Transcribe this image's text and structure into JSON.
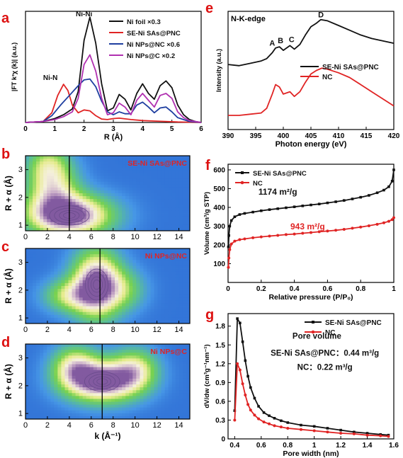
{
  "colors": {
    "black": "#111111",
    "red": "#e02424",
    "blue": "#1f3fa0",
    "purple": "#b030b0",
    "ni_n": "#d42020"
  },
  "chart_data": [
    {
      "id": "a",
      "type": "line",
      "panel_label": "a",
      "xlabel": "R (Å)",
      "ylabel": "|FT k³χ (k)| (a.u.)",
      "xlim": [
        0,
        6
      ],
      "ylim": [
        0,
        11.5
      ],
      "xticks": [
        0,
        1,
        2,
        3,
        4,
        5,
        6
      ],
      "annotations": [
        {
          "text": "Ni-Ni",
          "x": 2.0,
          "y": 11.0
        },
        {
          "text": "Ni-N",
          "x": 0.85,
          "y": 4.4
        }
      ],
      "legend": "top-right",
      "series": [
        {
          "name": "Ni foil ×0.3",
          "color": "#111111",
          "x": [
            0,
            0.6,
            1.0,
            1.3,
            1.6,
            1.8,
            2.0,
            2.2,
            2.4,
            2.6,
            2.8,
            3.0,
            3.2,
            3.4,
            3.6,
            3.8,
            4.0,
            4.2,
            4.4,
            4.6,
            4.8,
            5.0,
            5.2,
            5.4,
            5.6,
            5.8,
            6.0
          ],
          "y": [
            0,
            0.1,
            0.4,
            0.8,
            1.4,
            3.2,
            8.5,
            10.9,
            8.2,
            4.0,
            1.2,
            1.5,
            2.9,
            2.4,
            1.3,
            3.0,
            4.0,
            3.0,
            2.4,
            3.8,
            4.3,
            3.6,
            1.8,
            0.8,
            0.3,
            0.1,
            0
          ]
        },
        {
          "name": "SE-Ni SAs@PNC",
          "color": "#e02424",
          "x": [
            0,
            0.6,
            0.9,
            1.1,
            1.3,
            1.45,
            1.6,
            1.8,
            2.0,
            2.2,
            2.4,
            2.6,
            2.8,
            3.0,
            3.2,
            3.6,
            4.0,
            4.4,
            4.8,
            5.2,
            5.6,
            6.0
          ],
          "y": [
            0,
            0.1,
            1.0,
            2.8,
            3.95,
            3.3,
            1.8,
            1.0,
            1.3,
            1.2,
            0.7,
            0.35,
            0.3,
            0.4,
            0.45,
            0.3,
            0.2,
            0.15,
            0.1,
            0.05,
            0.03,
            0
          ]
        },
        {
          "name": "Ni NPs@NC ×0.6",
          "color": "#1f3fa0",
          "x": [
            0,
            0.6,
            0.9,
            1.2,
            1.5,
            1.8,
            2.0,
            2.2,
            2.4,
            2.6,
            2.8,
            3.0,
            3.2,
            3.4,
            3.6,
            3.8,
            4.0,
            4.2,
            4.4,
            4.6,
            4.8,
            5.0,
            5.2,
            5.6,
            6.0
          ],
          "y": [
            0,
            0.1,
            0.7,
            1.8,
            2.8,
            3.8,
            4.4,
            4.5,
            3.7,
            2.2,
            1.1,
            0.8,
            1.1,
            0.9,
            0.9,
            1.8,
            2.1,
            1.6,
            1.0,
            1.5,
            1.6,
            1.1,
            0.5,
            0.1,
            0
          ]
        },
        {
          "name": "Ni NPs@C ×0.2",
          "color": "#b030b0",
          "x": [
            0,
            0.6,
            1.0,
            1.3,
            1.6,
            1.8,
            2.0,
            2.2,
            2.4,
            2.6,
            2.8,
            3.0,
            3.2,
            3.4,
            3.6,
            3.8,
            4.0,
            4.2,
            4.4,
            4.6,
            4.8,
            5.0,
            5.2,
            5.4,
            5.6,
            6.0
          ],
          "y": [
            0,
            0.1,
            0.3,
            0.6,
            1.1,
            2.5,
            6.0,
            7.0,
            5.3,
            2.5,
            0.8,
            1.0,
            2.0,
            1.6,
            0.8,
            2.3,
            3.0,
            2.3,
            1.6,
            2.8,
            3.0,
            2.5,
            1.1,
            0.5,
            0.2,
            0
          ]
        }
      ]
    },
    {
      "id": "e",
      "type": "line",
      "panel_label": "e",
      "title": "N-K-edge",
      "xlabel": "Photon energy (eV)",
      "ylabel": "Intensity (a.u.)",
      "xlim": [
        390,
        420
      ],
      "ylim": [
        0,
        1
      ],
      "xticks": [
        390,
        395,
        400,
        405,
        410,
        415,
        420
      ],
      "annotations": [
        {
          "text": "A",
          "x": 398.0,
          "y": 0.71
        },
        {
          "text": "B",
          "x": 399.5,
          "y": 0.73
        },
        {
          "text": "C",
          "x": 401.5,
          "y": 0.74
        },
        {
          "text": "D",
          "x": 406.8,
          "y": 0.95
        }
      ],
      "legend": "center-right",
      "series": [
        {
          "name": "SE-Ni SAs@PNC",
          "color": "#111111",
          "x": [
            390,
            392,
            394,
            396,
            397,
            398,
            398.6,
            399.3,
            400,
            401.2,
            402,
            403,
            404,
            405,
            406,
            406.8,
            408,
            410,
            412,
            414,
            416,
            418,
            420
          ],
          "y": [
            0.55,
            0.54,
            0.56,
            0.58,
            0.6,
            0.65,
            0.69,
            0.7,
            0.67,
            0.71,
            0.68,
            0.72,
            0.8,
            0.87,
            0.9,
            0.93,
            0.92,
            0.88,
            0.84,
            0.8,
            0.77,
            0.75,
            0.73
          ]
        },
        {
          "name": "NC",
          "color": "#e02424",
          "x": [
            390,
            392,
            394,
            396,
            397,
            398,
            398.6,
            399.3,
            400,
            401.2,
            402,
            403,
            404,
            405,
            406,
            407,
            408,
            410,
            412,
            414,
            416,
            418,
            420
          ],
          "y": [
            0.12,
            0.12,
            0.13,
            0.14,
            0.18,
            0.3,
            0.38,
            0.36,
            0.3,
            0.32,
            0.28,
            0.32,
            0.4,
            0.47,
            0.5,
            0.52,
            0.51,
            0.48,
            0.44,
            0.38,
            0.32,
            0.26,
            0.2
          ]
        }
      ]
    },
    {
      "id": "b",
      "type": "heatmap",
      "panel_label": "b",
      "panel_name": "SE-Ni SAs@PNC",
      "xlim": [
        0,
        15
      ],
      "ylim": [
        0.8,
        3.5
      ],
      "xticks": [
        0,
        2,
        4,
        6,
        8,
        10,
        12,
        14
      ],
      "yticks": [
        1,
        2,
        3
      ],
      "ylabel": "R + α (Å)",
      "vline_k": 4.0,
      "peaks": [
        {
          "k": 4.0,
          "r": 1.35,
          "w": 2.6,
          "h": 0.5,
          "amp": 1.0
        },
        {
          "k": 2.5,
          "r": 2.3,
          "w": 1.6,
          "h": 0.7,
          "amp": 0.55
        },
        {
          "k": 2.0,
          "r": 3.2,
          "w": 1.3,
          "h": 0.5,
          "amp": 0.35
        }
      ]
    },
    {
      "id": "c",
      "type": "heatmap",
      "panel_label": "c",
      "panel_name": "Ni NPs@NC",
      "xlim": [
        0,
        15
      ],
      "ylim": [
        0.8,
        3.5
      ],
      "xticks": [
        0,
        2,
        4,
        6,
        8,
        10,
        12,
        14
      ],
      "yticks": [
        1,
        2,
        3
      ],
      "ylabel": "R + α (Å)",
      "vline_k": 6.8,
      "peaks": [
        {
          "k": 6.5,
          "r": 2.2,
          "w": 1.5,
          "h": 0.8,
          "amp": 1.0
        },
        {
          "k": 4.0,
          "r": 1.8,
          "w": 1.6,
          "h": 0.4,
          "amp": 0.45
        },
        {
          "k": 9.0,
          "r": 2.0,
          "w": 1.4,
          "h": 0.5,
          "amp": 0.3
        }
      ]
    },
    {
      "id": "d",
      "type": "heatmap",
      "panel_label": "d",
      "panel_name": "Ni NPs@C",
      "xlim": [
        0,
        15
      ],
      "ylim": [
        0.8,
        3.5
      ],
      "xticks": [
        0,
        2,
        4,
        6,
        8,
        10,
        12,
        14
      ],
      "yticks": [
        1,
        2,
        3
      ],
      "ylabel": "R + α (Å)",
      "xlabel": "k (Å⁻¹)",
      "vline_k": 7.0,
      "peaks": [
        {
          "k": 7.0,
          "r": 2.15,
          "w": 2.3,
          "h": 0.5,
          "amp": 1.0
        },
        {
          "k": 4.5,
          "r": 2.7,
          "w": 1.4,
          "h": 0.5,
          "amp": 0.55
        },
        {
          "k": 10.0,
          "r": 2.6,
          "w": 1.4,
          "h": 0.5,
          "amp": 0.5
        }
      ]
    },
    {
      "id": "f",
      "type": "line",
      "panel_label": "f",
      "xlabel": "Relative pressure (P/P₀)",
      "ylabel": "Volume (cm³/g STP)",
      "xlim": [
        0,
        1
      ],
      "ylim": [
        0,
        630
      ],
      "xticks": [
        0.0,
        0.2,
        0.4,
        0.6,
        0.8,
        1.0
      ],
      "yticks": [
        100,
        200,
        300,
        400,
        500,
        600
      ],
      "annotations": [
        {
          "text": "1174 m²/g",
          "x": 0.3,
          "y": 468,
          "color": "#111111"
        },
        {
          "text": "943 m²/g",
          "x": 0.48,
          "y": 283,
          "color": "#e02424"
        }
      ],
      "legend": "top-left",
      "series": [
        {
          "name": "SE-Ni SAs@PNC",
          "color": "#111111",
          "marker": "square",
          "x": [
            0.002,
            0.005,
            0.01,
            0.02,
            0.04,
            0.07,
            0.1,
            0.15,
            0.2,
            0.25,
            0.3,
            0.35,
            0.4,
            0.45,
            0.5,
            0.55,
            0.6,
            0.65,
            0.7,
            0.75,
            0.8,
            0.85,
            0.9,
            0.94,
            0.97,
            0.99,
            1.0
          ],
          "y": [
            190,
            250,
            300,
            330,
            350,
            362,
            368,
            375,
            382,
            388,
            393,
            398,
            403,
            408,
            413,
            418,
            424,
            430,
            437,
            445,
            454,
            464,
            478,
            492,
            510,
            540,
            600
          ]
        },
        {
          "name": "NC",
          "color": "#e02424",
          "marker": "circle",
          "x": [
            0.002,
            0.005,
            0.01,
            0.02,
            0.04,
            0.07,
            0.1,
            0.15,
            0.2,
            0.25,
            0.3,
            0.35,
            0.4,
            0.45,
            0.5,
            0.55,
            0.6,
            0.65,
            0.7,
            0.75,
            0.8,
            0.85,
            0.9,
            0.94,
            0.97,
            0.99,
            1.0
          ],
          "y": [
            80,
            130,
            175,
            205,
            220,
            228,
            232,
            238,
            243,
            247,
            251,
            255,
            258,
            262,
            266,
            270,
            274,
            278,
            283,
            289,
            295,
            302,
            310,
            318,
            326,
            335,
            345
          ]
        }
      ]
    },
    {
      "id": "g",
      "type": "line",
      "panel_label": "g",
      "xlabel": "Pore width (nm)",
      "ylabel": "dV/dw (cm³g⁻¹nm⁻¹)",
      "xlim": [
        0.35,
        1.6
      ],
      "ylim": [
        0,
        2.0
      ],
      "xticks": [
        0.4,
        0.6,
        0.8,
        1.0,
        1.2,
        1.4,
        1.6
      ],
      "yticks": [
        0.0,
        0.3,
        0.6,
        0.9,
        1.2,
        1.5,
        1.8
      ],
      "annotations": [
        {
          "text": "Pore volume",
          "x": 1.02,
          "y": 1.6
        },
        {
          "text": "SE-Ni SAs@PNC：0.44 m³/g",
          "x": 1.08,
          "y": 1.33
        },
        {
          "text": "NC：0.22 m³/g",
          "x": 1.08,
          "y": 1.1
        }
      ],
      "legend": "top-right",
      "series": [
        {
          "name": "SE-Ni SAs@PNC",
          "color": "#111111",
          "marker": "square",
          "x": [
            0.4,
            0.42,
            0.44,
            0.46,
            0.48,
            0.5,
            0.52,
            0.55,
            0.58,
            0.62,
            0.66,
            0.7,
            0.75,
            0.8,
            0.9,
            1.0,
            1.1,
            1.2,
            1.3,
            1.4,
            1.5,
            1.56
          ],
          "y": [
            0.45,
            1.92,
            1.85,
            1.55,
            1.25,
            1.0,
            0.82,
            0.65,
            0.52,
            0.42,
            0.37,
            0.33,
            0.29,
            0.26,
            0.22,
            0.2,
            0.17,
            0.14,
            0.11,
            0.09,
            0.07,
            0.06
          ]
        },
        {
          "name": "NC",
          "color": "#e02424",
          "marker": "circle",
          "x": [
            0.4,
            0.42,
            0.44,
            0.46,
            0.48,
            0.5,
            0.52,
            0.55,
            0.58,
            0.62,
            0.66,
            0.7,
            0.75,
            0.8,
            0.9,
            1.0,
            1.1,
            1.2,
            1.3,
            1.4,
            1.5,
            1.56
          ],
          "y": [
            0.3,
            1.2,
            1.1,
            0.88,
            0.7,
            0.55,
            0.46,
            0.38,
            0.32,
            0.27,
            0.24,
            0.21,
            0.19,
            0.17,
            0.15,
            0.13,
            0.11,
            0.09,
            0.08,
            0.06,
            0.05,
            0.04
          ]
        }
      ]
    }
  ]
}
